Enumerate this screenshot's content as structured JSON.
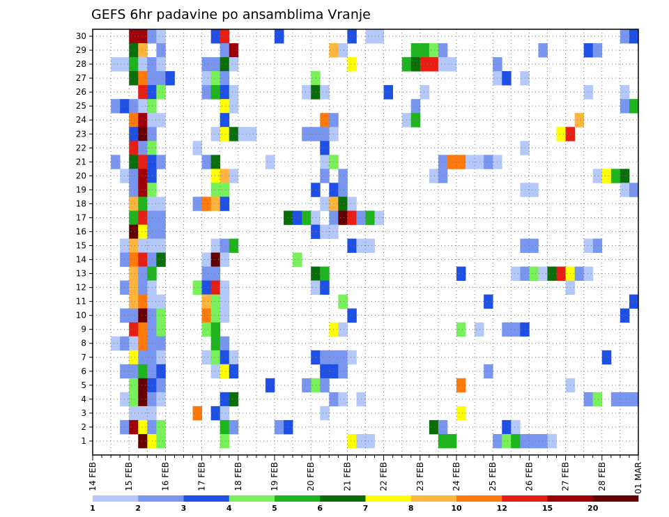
{
  "chart_data": {
    "type": "heatmap",
    "title": "GEFS 6hr padavine po ansamblima Vranje",
    "y_categories": [
      "1",
      "2",
      "3",
      "4",
      "5",
      "6",
      "7",
      "8",
      "9",
      "10",
      "11",
      "12",
      "13",
      "14",
      "15",
      "16",
      "17",
      "18",
      "19",
      "20",
      "21",
      "22",
      "23",
      "24",
      "25",
      "26",
      "27",
      "28",
      "29",
      "30"
    ],
    "x_tick_labels": [
      "14 FEB",
      "15 FEB",
      "16 FEB",
      "17 FEB",
      "18 FEB",
      "19 FEB",
      "20 FEB",
      "21 FEB",
      "22 FEB",
      "23 FEB",
      "24 FEB",
      "25 FEB",
      "26 FEB",
      "27 FEB",
      "28 FEB",
      "01 MAR"
    ],
    "x_range_steps": [
      0,
      60
    ],
    "steps_per_day": 4,
    "grid": true,
    "colorbar": {
      "labels": [
        "1",
        "2",
        "3",
        "4",
        "5",
        "6",
        "7",
        "8",
        "10",
        "12",
        "15",
        "20"
      ],
      "colors": [
        "#b4c8fa",
        "#7896f0",
        "#1e50e6",
        "#78f05a",
        "#1eb41e",
        "#0a6e0a",
        "#ffff00",
        "#ffb43c",
        "#ff780a",
        "#e61e14",
        "#a0000a",
        "#640000"
      ],
      "placement": "bottom"
    },
    "cells": [
      [
        30,
        4,
        11
      ],
      [
        30,
        5,
        11
      ],
      [
        30,
        6,
        2
      ],
      [
        30,
        7,
        1
      ],
      [
        30,
        13,
        3
      ],
      [
        30,
        14,
        10
      ],
      [
        30,
        20,
        3
      ],
      [
        30,
        28,
        3
      ],
      [
        30,
        30,
        1
      ],
      [
        30,
        31,
        1
      ],
      [
        30,
        58,
        2
      ],
      [
        30,
        59,
        3
      ],
      [
        29,
        4,
        6
      ],
      [
        29,
        5,
        8
      ],
      [
        29,
        7,
        2
      ],
      [
        29,
        14,
        2
      ],
      [
        29,
        15,
        11
      ],
      [
        29,
        26,
        8
      ],
      [
        29,
        27,
        1
      ],
      [
        29,
        35,
        5
      ],
      [
        29,
        36,
        5
      ],
      [
        29,
        37,
        4
      ],
      [
        29,
        38,
        2
      ],
      [
        29,
        49,
        2
      ],
      [
        29,
        54,
        3
      ],
      [
        29,
        55,
        2
      ],
      [
        28,
        2,
        1
      ],
      [
        28,
        3,
        1
      ],
      [
        28,
        4,
        5
      ],
      [
        28,
        5,
        1
      ],
      [
        28,
        6,
        2
      ],
      [
        28,
        7,
        1
      ],
      [
        28,
        12,
        2
      ],
      [
        28,
        13,
        2
      ],
      [
        28,
        14,
        6
      ],
      [
        28,
        15,
        1
      ],
      [
        28,
        28,
        7
      ],
      [
        28,
        34,
        5
      ],
      [
        28,
        35,
        6
      ],
      [
        28,
        36,
        10
      ],
      [
        28,
        37,
        10
      ],
      [
        28,
        38,
        1
      ],
      [
        28,
        39,
        1
      ],
      [
        28,
        44,
        2
      ],
      [
        27,
        4,
        6
      ],
      [
        27,
        5,
        9
      ],
      [
        27,
        6,
        2
      ],
      [
        27,
        7,
        2
      ],
      [
        27,
        8,
        3
      ],
      [
        27,
        12,
        1
      ],
      [
        27,
        13,
        4
      ],
      [
        27,
        14,
        2
      ],
      [
        27,
        24,
        4
      ],
      [
        27,
        44,
        1
      ],
      [
        27,
        45,
        3
      ],
      [
        27,
        47,
        1
      ],
      [
        26,
        5,
        10
      ],
      [
        26,
        6,
        3
      ],
      [
        26,
        7,
        4
      ],
      [
        26,
        12,
        2
      ],
      [
        26,
        13,
        5
      ],
      [
        26,
        14,
        3
      ],
      [
        26,
        15,
        1
      ],
      [
        26,
        23,
        1
      ],
      [
        26,
        24,
        6
      ],
      [
        26,
        25,
        1
      ],
      [
        26,
        32,
        3
      ],
      [
        26,
        36,
        1
      ],
      [
        26,
        54,
        1
      ],
      [
        26,
        58,
        1
      ],
      [
        25,
        2,
        2
      ],
      [
        25,
        3,
        3
      ],
      [
        25,
        4,
        2
      ],
      [
        25,
        5,
        1
      ],
      [
        25,
        6,
        4
      ],
      [
        25,
        14,
        7
      ],
      [
        25,
        15,
        1
      ],
      [
        25,
        35,
        2
      ],
      [
        25,
        58,
        2
      ],
      [
        25,
        59,
        5
      ],
      [
        24,
        4,
        9
      ],
      [
        24,
        5,
        11
      ],
      [
        24,
        6,
        1
      ],
      [
        24,
        7,
        1
      ],
      [
        24,
        14,
        3
      ],
      [
        24,
        25,
        9
      ],
      [
        24,
        26,
        2
      ],
      [
        24,
        34,
        1
      ],
      [
        24,
        35,
        5
      ],
      [
        24,
        53,
        8
      ],
      [
        23,
        4,
        3
      ],
      [
        23,
        5,
        12
      ],
      [
        23,
        6,
        2
      ],
      [
        23,
        13,
        1
      ],
      [
        23,
        14,
        7
      ],
      [
        23,
        15,
        6
      ],
      [
        23,
        16,
        1
      ],
      [
        23,
        17,
        1
      ],
      [
        23,
        23,
        2
      ],
      [
        23,
        24,
        2
      ],
      [
        23,
        25,
        2
      ],
      [
        23,
        26,
        1
      ],
      [
        23,
        51,
        7
      ],
      [
        23,
        52,
        10
      ],
      [
        22,
        4,
        10
      ],
      [
        22,
        5,
        2
      ],
      [
        22,
        6,
        4
      ],
      [
        22,
        11,
        1
      ],
      [
        22,
        25,
        3
      ],
      [
        22,
        47,
        1
      ],
      [
        21,
        2,
        2
      ],
      [
        21,
        4,
        6
      ],
      [
        21,
        5,
        10
      ],
      [
        21,
        6,
        3
      ],
      [
        21,
        7,
        2
      ],
      [
        21,
        12,
        2
      ],
      [
        21,
        13,
        6
      ],
      [
        21,
        19,
        1
      ],
      [
        21,
        25,
        1
      ],
      [
        21,
        26,
        4
      ],
      [
        21,
        38,
        2
      ],
      [
        21,
        39,
        9
      ],
      [
        21,
        40,
        9
      ],
      [
        21,
        41,
        1
      ],
      [
        21,
        42,
        1
      ],
      [
        21,
        43,
        2
      ],
      [
        21,
        44,
        1
      ],
      [
        20,
        3,
        1
      ],
      [
        20,
        4,
        2
      ],
      [
        20,
        5,
        11
      ],
      [
        20,
        6,
        3
      ],
      [
        20,
        13,
        7
      ],
      [
        20,
        14,
        8
      ],
      [
        20,
        15,
        1
      ],
      [
        20,
        25,
        2
      ],
      [
        20,
        27,
        2
      ],
      [
        20,
        37,
        1
      ],
      [
        20,
        38,
        2
      ],
      [
        20,
        55,
        1
      ],
      [
        20,
        56,
        7
      ],
      [
        20,
        57,
        5
      ],
      [
        20,
        58,
        6
      ],
      [
        19,
        4,
        2
      ],
      [
        19,
        5,
        11
      ],
      [
        19,
        6,
        4
      ],
      [
        19,
        13,
        4
      ],
      [
        19,
        14,
        4
      ],
      [
        19,
        24,
        3
      ],
      [
        19,
        26,
        3
      ],
      [
        19,
        27,
        2
      ],
      [
        19,
        47,
        1
      ],
      [
        19,
        48,
        1
      ],
      [
        19,
        58,
        1
      ],
      [
        19,
        59,
        2
      ],
      [
        18,
        4,
        8
      ],
      [
        18,
        5,
        5
      ],
      [
        18,
        6,
        1
      ],
      [
        18,
        7,
        1
      ],
      [
        18,
        11,
        2
      ],
      [
        18,
        12,
        9
      ],
      [
        18,
        13,
        8
      ],
      [
        18,
        14,
        3
      ],
      [
        18,
        25,
        1
      ],
      [
        18,
        26,
        8
      ],
      [
        18,
        27,
        6
      ],
      [
        18,
        28,
        1
      ],
      [
        17,
        4,
        5
      ],
      [
        17,
        5,
        10
      ],
      [
        17,
        6,
        2
      ],
      [
        17,
        7,
        2
      ],
      [
        17,
        21,
        6
      ],
      [
        17,
        22,
        3
      ],
      [
        17,
        23,
        5
      ],
      [
        17,
        24,
        1
      ],
      [
        17,
        26,
        2
      ],
      [
        17,
        27,
        12
      ],
      [
        17,
        28,
        10
      ],
      [
        17,
        29,
        2
      ],
      [
        17,
        30,
        5
      ],
      [
        17,
        31,
        1
      ],
      [
        16,
        4,
        12
      ],
      [
        16,
        5,
        7
      ],
      [
        16,
        6,
        2
      ],
      [
        16,
        7,
        2
      ],
      [
        16,
        24,
        3
      ],
      [
        16,
        25,
        1
      ],
      [
        16,
        26,
        1
      ],
      [
        15,
        3,
        1
      ],
      [
        15,
        4,
        8
      ],
      [
        15,
        5,
        1
      ],
      [
        15,
        6,
        1
      ],
      [
        15,
        7,
        1
      ],
      [
        15,
        13,
        1
      ],
      [
        15,
        14,
        2
      ],
      [
        15,
        15,
        5
      ],
      [
        15,
        28,
        3
      ],
      [
        15,
        29,
        1
      ],
      [
        15,
        30,
        1
      ],
      [
        15,
        47,
        2
      ],
      [
        15,
        48,
        2
      ],
      [
        15,
        54,
        1
      ],
      [
        15,
        55,
        2
      ],
      [
        14,
        3,
        2
      ],
      [
        14,
        4,
        9
      ],
      [
        14,
        5,
        10
      ],
      [
        14,
        6,
        2
      ],
      [
        14,
        7,
        6
      ],
      [
        14,
        12,
        1
      ],
      [
        14,
        13,
        12
      ],
      [
        14,
        14,
        1
      ],
      [
        14,
        22,
        4
      ],
      [
        13,
        4,
        8
      ],
      [
        13,
        5,
        2
      ],
      [
        13,
        6,
        5
      ],
      [
        13,
        12,
        2
      ],
      [
        13,
        13,
        2
      ],
      [
        13,
        24,
        6
      ],
      [
        13,
        25,
        5
      ],
      [
        13,
        40,
        3
      ],
      [
        13,
        46,
        1
      ],
      [
        13,
        47,
        2
      ],
      [
        13,
        48,
        4
      ],
      [
        13,
        49,
        1
      ],
      [
        13,
        50,
        6
      ],
      [
        13,
        51,
        10
      ],
      [
        13,
        52,
        7
      ],
      [
        13,
        53,
        2
      ],
      [
        13,
        54,
        1
      ],
      [
        12,
        3,
        2
      ],
      [
        12,
        4,
        8
      ],
      [
        12,
        5,
        2
      ],
      [
        12,
        6,
        1
      ],
      [
        12,
        11,
        4
      ],
      [
        12,
        12,
        3
      ],
      [
        12,
        13,
        10
      ],
      [
        12,
        14,
        1
      ],
      [
        12,
        24,
        1
      ],
      [
        12,
        25,
        3
      ],
      [
        12,
        52,
        1
      ],
      [
        11,
        4,
        8
      ],
      [
        11,
        5,
        9
      ],
      [
        11,
        6,
        1
      ],
      [
        11,
        7,
        1
      ],
      [
        11,
        12,
        8
      ],
      [
        11,
        13,
        4
      ],
      [
        11,
        14,
        1
      ],
      [
        11,
        27,
        4
      ],
      [
        11,
        43,
        3
      ],
      [
        11,
        59,
        3
      ],
      [
        10,
        3,
        2
      ],
      [
        10,
        4,
        2
      ],
      [
        10,
        5,
        12
      ],
      [
        10,
        6,
        2
      ],
      [
        10,
        7,
        4
      ],
      [
        10,
        12,
        9
      ],
      [
        10,
        13,
        4
      ],
      [
        10,
        14,
        1
      ],
      [
        10,
        28,
        3
      ],
      [
        10,
        58,
        3
      ],
      [
        9,
        4,
        10
      ],
      [
        9,
        5,
        9
      ],
      [
        9,
        6,
        2
      ],
      [
        9,
        7,
        4
      ],
      [
        9,
        12,
        4
      ],
      [
        9,
        13,
        5
      ],
      [
        9,
        26,
        7
      ],
      [
        9,
        27,
        1
      ],
      [
        9,
        40,
        4
      ],
      [
        9,
        42,
        1
      ],
      [
        9,
        45,
        2
      ],
      [
        9,
        46,
        2
      ],
      [
        9,
        47,
        3
      ],
      [
        8,
        2,
        1
      ],
      [
        8,
        3,
        2
      ],
      [
        8,
        4,
        1
      ],
      [
        8,
        5,
        9
      ],
      [
        8,
        6,
        2
      ],
      [
        8,
        7,
        2
      ],
      [
        8,
        13,
        5
      ],
      [
        8,
        14,
        2
      ],
      [
        7,
        4,
        7
      ],
      [
        7,
        5,
        2
      ],
      [
        7,
        6,
        2
      ],
      [
        7,
        7,
        1
      ],
      [
        7,
        12,
        1
      ],
      [
        7,
        13,
        4
      ],
      [
        7,
        14,
        3
      ],
      [
        7,
        15,
        1
      ],
      [
        7,
        24,
        3
      ],
      [
        7,
        25,
        2
      ],
      [
        7,
        26,
        2
      ],
      [
        7,
        27,
        2
      ],
      [
        7,
        28,
        1
      ],
      [
        7,
        56,
        3
      ],
      [
        6,
        3,
        2
      ],
      [
        6,
        4,
        2
      ],
      [
        6,
        5,
        5
      ],
      [
        6,
        6,
        2
      ],
      [
        6,
        7,
        3
      ],
      [
        6,
        13,
        1
      ],
      [
        6,
        14,
        7
      ],
      [
        6,
        15,
        3
      ],
      [
        6,
        25,
        3
      ],
      [
        6,
        26,
        3
      ],
      [
        6,
        27,
        2
      ],
      [
        6,
        43,
        2
      ],
      [
        5,
        4,
        4
      ],
      [
        5,
        5,
        12
      ],
      [
        5,
        6,
        3
      ],
      [
        5,
        7,
        2
      ],
      [
        5,
        19,
        3
      ],
      [
        5,
        23,
        2
      ],
      [
        5,
        24,
        4
      ],
      [
        5,
        25,
        2
      ],
      [
        5,
        40,
        9
      ],
      [
        5,
        52,
        1
      ],
      [
        4,
        3,
        1
      ],
      [
        4,
        4,
        4
      ],
      [
        4,
        5,
        12
      ],
      [
        4,
        6,
        2
      ],
      [
        4,
        7,
        1
      ],
      [
        4,
        14,
        3
      ],
      [
        4,
        15,
        6
      ],
      [
        4,
        26,
        2
      ],
      [
        4,
        27,
        1
      ],
      [
        4,
        29,
        1
      ],
      [
        4,
        54,
        2
      ],
      [
        4,
        55,
        4
      ],
      [
        4,
        57,
        2
      ],
      [
        4,
        58,
        2
      ],
      [
        4,
        59,
        2
      ],
      [
        3,
        4,
        1
      ],
      [
        3,
        5,
        1
      ],
      [
        3,
        6,
        1
      ],
      [
        3,
        11,
        9
      ],
      [
        3,
        13,
        3
      ],
      [
        3,
        14,
        1
      ],
      [
        3,
        25,
        1
      ],
      [
        3,
        40,
        7
      ],
      [
        2,
        3,
        2
      ],
      [
        2,
        4,
        11
      ],
      [
        2,
        5,
        7
      ],
      [
        2,
        6,
        2
      ],
      [
        2,
        7,
        4
      ],
      [
        2,
        14,
        5
      ],
      [
        2,
        15,
        2
      ],
      [
        2,
        20,
        2
      ],
      [
        2,
        21,
        3
      ],
      [
        2,
        37,
        6
      ],
      [
        2,
        38,
        2
      ],
      [
        2,
        45,
        3
      ],
      [
        2,
        46,
        1
      ],
      [
        1,
        5,
        12
      ],
      [
        1,
        6,
        7
      ],
      [
        1,
        7,
        4
      ],
      [
        1,
        14,
        4
      ],
      [
        1,
        28,
        7
      ],
      [
        1,
        29,
        1
      ],
      [
        1,
        30,
        1
      ],
      [
        1,
        38,
        5
      ],
      [
        1,
        39,
        5
      ],
      [
        1,
        44,
        2
      ],
      [
        1,
        45,
        4
      ],
      [
        1,
        46,
        5
      ],
      [
        1,
        47,
        2
      ],
      [
        1,
        48,
        2
      ],
      [
        1,
        49,
        2
      ],
      [
        1,
        50,
        1
      ]
    ]
  }
}
